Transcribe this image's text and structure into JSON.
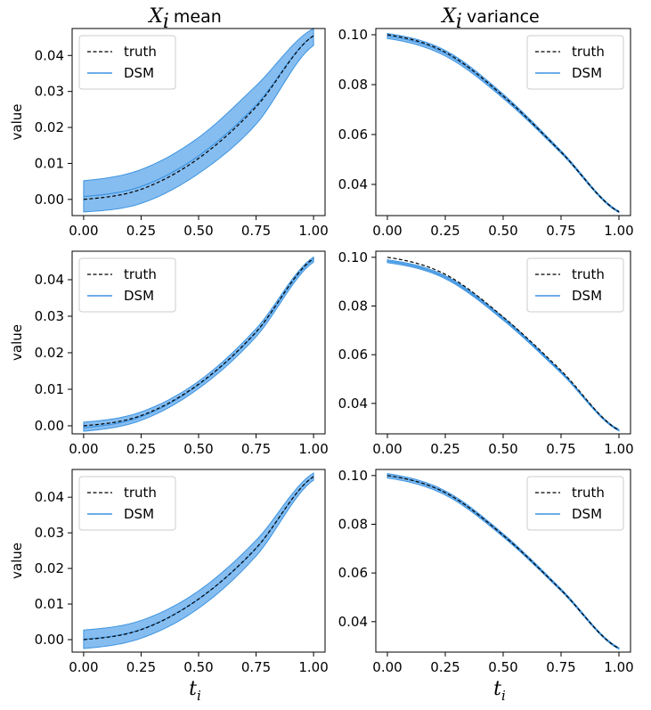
{
  "figure": {
    "col_titles": [
      {
        "var": "X",
        "sub": "i",
        "rest": "mean"
      },
      {
        "var": "X",
        "sub": "i",
        "rest": "variance"
      }
    ],
    "ylabel": "value",
    "xlabel": {
      "var": "t",
      "sub": "i"
    },
    "legend": {
      "truth": "truth",
      "model": "DSM"
    },
    "colors": {
      "band": "#86bdf0",
      "line": "#3d94e0",
      "truth": "#000000",
      "frame": "#000000"
    }
  },
  "chart_data": [
    {
      "id": "r1-mean",
      "type": "line",
      "x": [
        0,
        0.25,
        0.5,
        0.75,
        1.0
      ],
      "truth": [
        0.0,
        0.0028,
        0.0114,
        0.0257,
        0.0455
      ],
      "model": [
        0.0008,
        0.0036,
        0.0121,
        0.0262,
        0.0455
      ],
      "band_lo": [
        -0.0035,
        -0.0011,
        0.0072,
        0.0209,
        0.0428
      ],
      "band_hi": [
        0.0052,
        0.0083,
        0.0172,
        0.0316,
        0.0475
      ],
      "xlim": [
        -0.05,
        1.05
      ],
      "ylim": [
        -0.0045,
        0.0475
      ],
      "xticks": [
        "0.00",
        "0.25",
        "0.50",
        "0.75",
        "1.00"
      ],
      "yticks": [
        "0.00",
        "0.01",
        "0.02",
        "0.03",
        "0.04"
      ],
      "legend_loc": "upper left",
      "show_ylabel": true,
      "show_xlabel": false
    },
    {
      "id": "r1-var",
      "type": "line",
      "x": [
        0,
        0.25,
        0.5,
        0.75,
        1.0
      ],
      "truth": [
        0.1,
        0.093,
        0.0755,
        0.053,
        0.029
      ],
      "model": [
        0.0995,
        0.0925,
        0.0752,
        0.0529,
        0.029
      ],
      "band_lo": [
        0.0985,
        0.0915,
        0.0745,
        0.0525,
        0.0287
      ],
      "band_hi": [
        0.1005,
        0.0937,
        0.0762,
        0.0535,
        0.0293
      ],
      "xlim": [
        -0.05,
        1.05
      ],
      "ylim": [
        0.0275,
        0.1025
      ],
      "xticks": [
        "0.00",
        "0.25",
        "0.50",
        "0.75",
        "1.00"
      ],
      "yticks": [
        "0.04",
        "0.06",
        "0.08",
        "0.10"
      ],
      "legend_loc": "upper right",
      "show_ylabel": false,
      "show_xlabel": false
    },
    {
      "id": "r2-mean",
      "type": "line",
      "x": [
        0,
        0.25,
        0.5,
        0.75,
        1.0
      ],
      "truth": [
        0.0,
        0.0028,
        0.0114,
        0.0257,
        0.0458
      ],
      "model": [
        -0.0005,
        0.0025,
        0.0112,
        0.0255,
        0.0455
      ],
      "band_lo": [
        -0.0015,
        0.0015,
        0.0102,
        0.0244,
        0.0448
      ],
      "band_hi": [
        0.001,
        0.0038,
        0.0122,
        0.0266,
        0.0462
      ],
      "xlim": [
        -0.05,
        1.05
      ],
      "ylim": [
        -0.0022,
        0.0478
      ],
      "xticks": [
        "0.00",
        "0.25",
        "0.50",
        "0.75",
        "1.00"
      ],
      "yticks": [
        "0.00",
        "0.01",
        "0.02",
        "0.03",
        "0.04"
      ],
      "legend_loc": "upper left",
      "show_ylabel": true,
      "show_xlabel": false
    },
    {
      "id": "r2-var",
      "type": "line",
      "x": [
        0,
        0.25,
        0.5,
        0.75,
        1.0
      ],
      "truth": [
        0.1,
        0.093,
        0.0755,
        0.0535,
        0.029
      ],
      "model": [
        0.0984,
        0.0918,
        0.0748,
        0.0528,
        0.029
      ],
      "band_lo": [
        0.0978,
        0.0912,
        0.0742,
        0.0524,
        0.0287
      ],
      "band_hi": [
        0.099,
        0.0924,
        0.0754,
        0.0532,
        0.0293
      ],
      "xlim": [
        -0.05,
        1.05
      ],
      "ylim": [
        0.0275,
        0.1025
      ],
      "xticks": [
        "0.00",
        "0.25",
        "0.50",
        "0.75",
        "1.00"
      ],
      "yticks": [
        "0.04",
        "0.06",
        "0.08",
        "0.10"
      ],
      "legend_loc": "upper right",
      "show_ylabel": false,
      "show_xlabel": false
    },
    {
      "id": "r3-mean",
      "type": "line",
      "x": [
        0,
        0.25,
        0.5,
        0.75,
        1.0
      ],
      "truth": [
        0.0,
        0.0028,
        0.0114,
        0.0257,
        0.0458
      ],
      "model": [
        0.0001,
        0.0029,
        0.0114,
        0.0256,
        0.0458
      ],
      "band_lo": [
        -0.0025,
        0.0004,
        0.0088,
        0.0235,
        0.0448
      ],
      "band_hi": [
        0.0027,
        0.0054,
        0.0137,
        0.0279,
        0.0468
      ],
      "xlim": [
        -0.05,
        1.05
      ],
      "ylim": [
        -0.0035,
        0.0478
      ],
      "xticks": [
        "0.00",
        "0.25",
        "0.50",
        "0.75",
        "1.00"
      ],
      "yticks": [
        "0.00",
        "0.01",
        "0.02",
        "0.03",
        "0.04"
      ],
      "legend_loc": "upper left",
      "show_ylabel": true,
      "show_xlabel": true
    },
    {
      "id": "r3-var",
      "type": "line",
      "x": [
        0,
        0.25,
        0.5,
        0.75,
        1.0
      ],
      "truth": [
        0.1,
        0.093,
        0.0755,
        0.053,
        0.029
      ],
      "model": [
        0.1,
        0.0928,
        0.0754,
        0.053,
        0.029
      ],
      "band_lo": [
        0.099,
        0.092,
        0.0748,
        0.0526,
        0.0287
      ],
      "band_hi": [
        0.1008,
        0.0937,
        0.0761,
        0.0535,
        0.0293
      ],
      "xlim": [
        -0.05,
        1.05
      ],
      "ylim": [
        0.0275,
        0.1025
      ],
      "xticks": [
        "0.00",
        "0.25",
        "0.50",
        "0.75",
        "1.00"
      ],
      "yticks": [
        "0.04",
        "0.06",
        "0.08",
        "0.10"
      ],
      "legend_loc": "upper right",
      "show_ylabel": false,
      "show_xlabel": true
    }
  ]
}
